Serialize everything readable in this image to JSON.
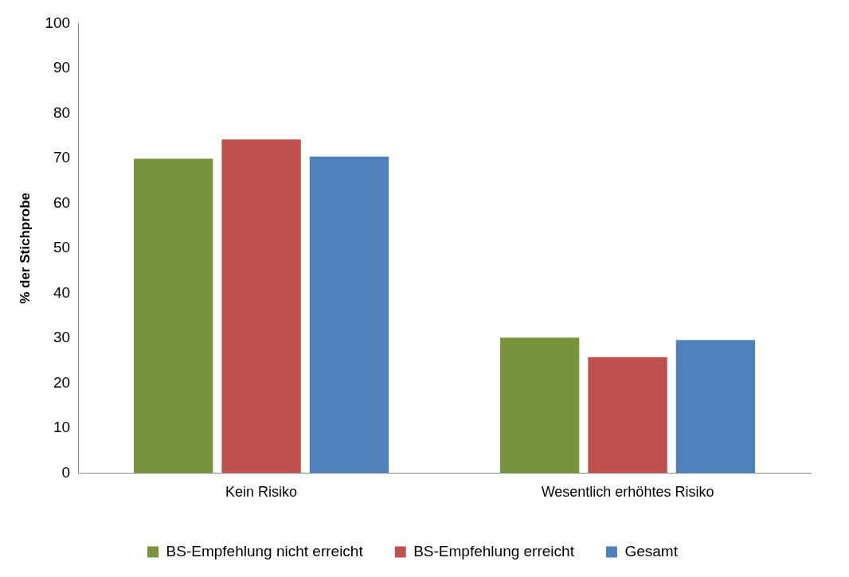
{
  "chart_data": {
    "type": "bar",
    "ylabel": "% der Stichprobe",
    "categories": [
      "Kein Risiko",
      "Wesentlich erhöhtes Risiko"
    ],
    "series": [
      {
        "name": "BS-Empfehlung nicht erreicht",
        "color": "#77933c",
        "values": [
          69.9,
          30.1
        ]
      },
      {
        "name": "BS-Empfehlung erreicht",
        "color": "#c0504d",
        "values": [
          74.2,
          25.8
        ]
      },
      {
        "name": "Gesamt",
        "color": "#4f81bd",
        "values": [
          70.4,
          29.6
        ]
      }
    ],
    "ylim": [
      0,
      100
    ],
    "yticks": [
      0,
      10,
      20,
      30,
      40,
      50,
      60,
      70,
      80,
      90,
      100
    ],
    "grid": false,
    "legend": "bottom"
  }
}
